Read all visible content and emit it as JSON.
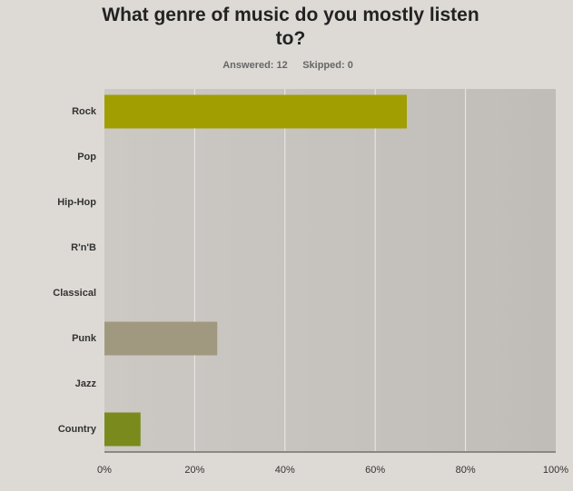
{
  "chart_data": {
    "type": "hbar",
    "title": "What genre of music do you mostly listen to?",
    "answered": "Answered: 12",
    "skipped": "Skipped: 0",
    "categories": [
      "Rock",
      "Pop",
      "Hip-Hop",
      "R'n'B",
      "Classical",
      "Punk",
      "Jazz",
      "Country"
    ],
    "values": [
      67,
      0,
      0,
      0,
      0,
      25,
      0,
      8
    ],
    "colors": [
      "#a09e00",
      "#a09e00",
      "#a09e00",
      "#a09e00",
      "#a09e00",
      "#a0997f",
      "#a09e00",
      "#7a8a1c"
    ],
    "xlim": [
      0,
      100
    ],
    "xticks": [
      {
        "value": 0,
        "label": "0%"
      },
      {
        "value": 20,
        "label": "20%"
      },
      {
        "value": 40,
        "label": "40%"
      },
      {
        "value": 60,
        "label": "60%"
      },
      {
        "value": 80,
        "label": "80%"
      },
      {
        "value": 100,
        "label": "100%"
      }
    ],
    "grid": true
  }
}
